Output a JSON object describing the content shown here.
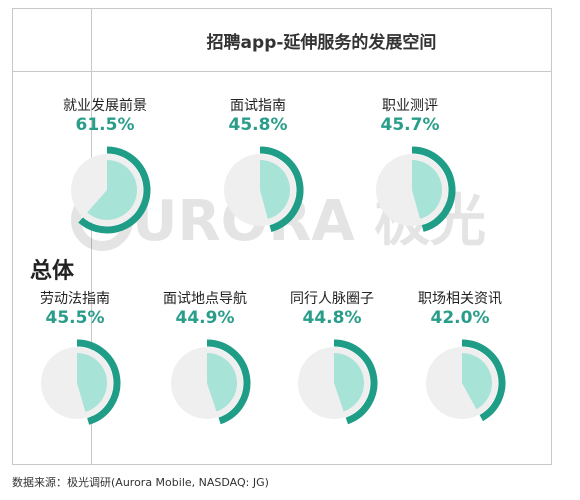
{
  "title": "招聘app-延伸服务的发展空间",
  "row_label": "总体",
  "watermark": "URORA 极光",
  "source": "数据来源：极光调研(Aurora Mobile, NASDAQ: JG)",
  "colors": {
    "accent": "#1f9d87",
    "fill": "#a8e3d8",
    "background_disc": "#efefef"
  },
  "chart_data": {
    "type": "pie",
    "title": "招聘app-延伸服务的发展空间",
    "unit": "%",
    "categories": [
      "就业发展前景",
      "面试指南",
      "职业测评",
      "劳动法指南",
      "面试地点导航",
      "同行人脉圈子",
      "职场相关资讯"
    ],
    "values": [
      61.5,
      45.8,
      45.7,
      45.5,
      44.9,
      44.8,
      42.0
    ],
    "labels": [
      "61.5%",
      "45.8%",
      "45.7%",
      "45.5%",
      "44.9%",
      "44.8%",
      "42.0%"
    ]
  }
}
